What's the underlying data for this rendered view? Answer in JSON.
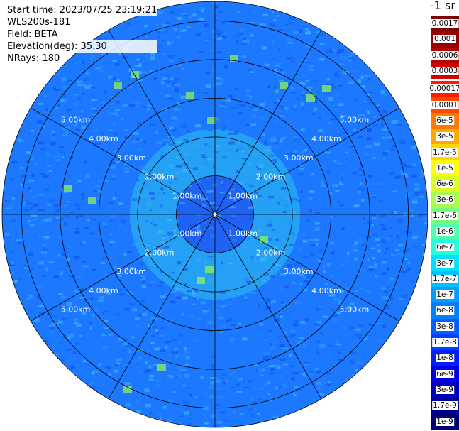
{
  "info": {
    "start_time": "Start time: 2023/07/25 23:19:21",
    "instrument": "WLS200s-181",
    "field": "Field: BETA",
    "elevation": "Elevation(deg): 35.30",
    "nrays": "NRays: 180"
  },
  "unit_label": "-1 sr",
  "colorbar": {
    "upper": [
      "0.0017",
      "0.001",
      "0.0006",
      "0.0003"
    ],
    "upper_colors": [
      "#7f0000",
      "#9a0000",
      "#b40000",
      "#d40000"
    ],
    "lower": [
      "0.00017",
      "0.0001",
      "6e-5",
      "3e-5",
      "1.7e-5",
      "1e-5",
      "6e-6",
      "3e-6",
      "1.7e-6",
      "1e-6",
      "6e-7",
      "3e-7",
      "1.7e-7",
      "1e-7",
      "6e-8",
      "3e-8",
      "1.7e-8",
      "1e-8",
      "6e-9",
      "3e-9",
      "1.7e-9",
      "1e-9"
    ],
    "lower_colors": [
      "#ff1a00",
      "#ff4a00",
      "#ff7a00",
      "#ffa800",
      "#ffd400",
      "#ffff00",
      "#d8ff20",
      "#a8ff50",
      "#78ff80",
      "#50ffb0",
      "#20ffe0",
      "#00e0ff",
      "#00c0ff",
      "#00a0ff",
      "#0080ff",
      "#0060ff",
      "#0040ff",
      "#0020ff",
      "#0000e8",
      "#0000c0",
      "#000098",
      "#000070"
    ]
  },
  "range_rings": {
    "labels": [
      "1.00km",
      "2.00km",
      "3.00km",
      "4.00km",
      "5.00km"
    ],
    "radii_km": [
      1,
      2,
      3,
      4,
      5,
      5.5
    ],
    "max_range_km": 5.5
  },
  "map_colors": {
    "background": "#1c78ff",
    "inner_echo": "#27aef0",
    "center_echo": "#1f58f4",
    "hotspot": "#8cf25a"
  }
}
